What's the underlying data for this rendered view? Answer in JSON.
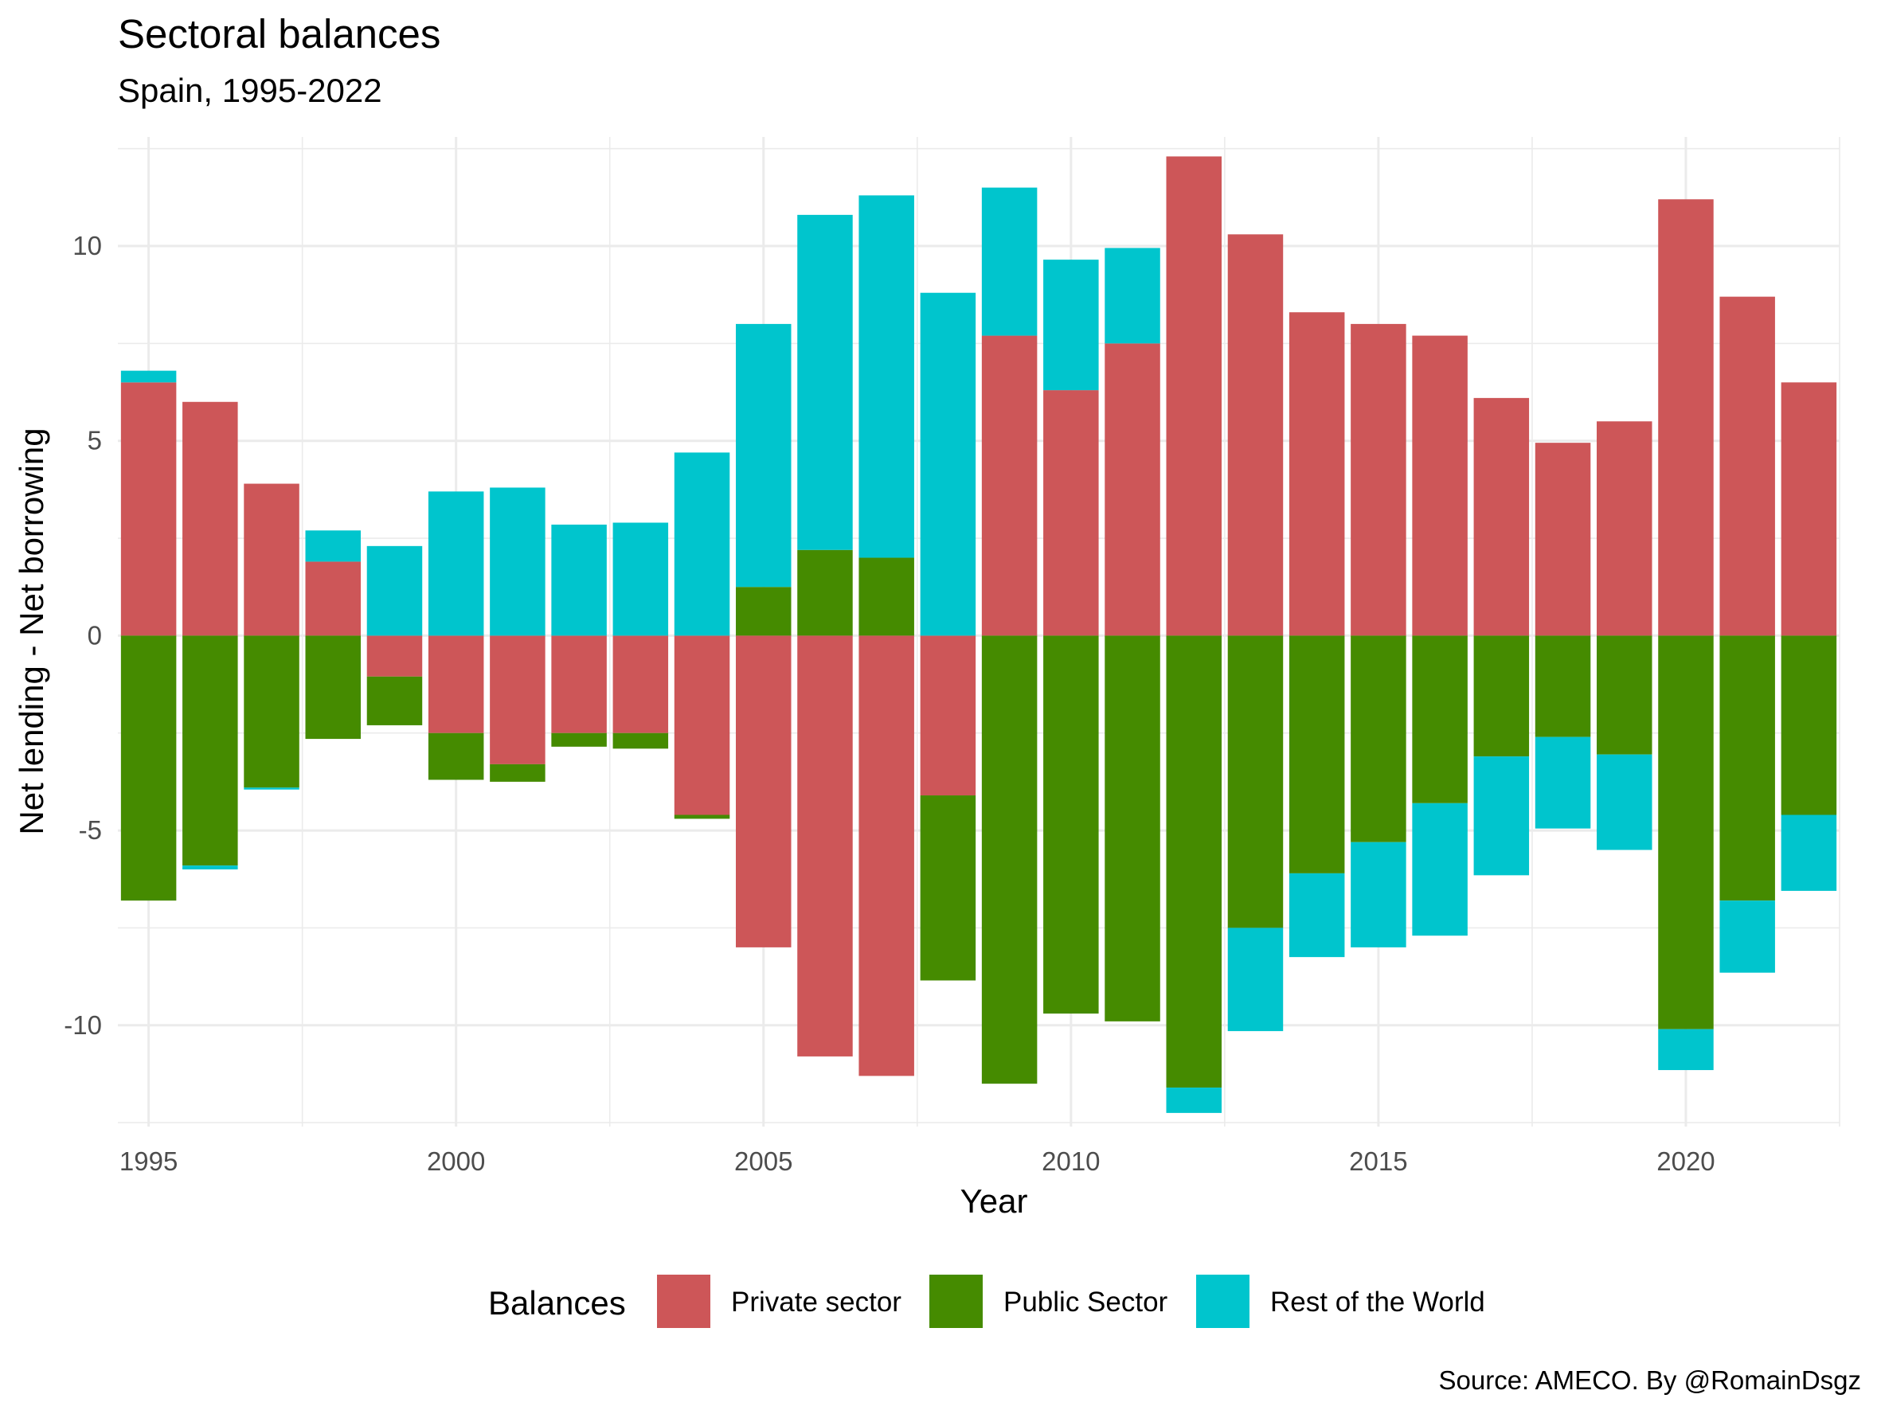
{
  "chart_data": {
    "type": "bar",
    "stacked": true,
    "title": "Sectoral balances",
    "subtitle": "Spain, 1995-2022",
    "xlabel": "Year",
    "ylabel": "Net lending - Net borrowing",
    "caption": "Source: AMECO. By @RomainDsgz",
    "xlim": [
      1994.5,
      2022.5
    ],
    "ylim": [
      -12.6,
      12.8
    ],
    "x_ticks": [
      "1995",
      "2000",
      "2005",
      "2010",
      "2015",
      "2020"
    ],
    "y_ticks": [
      "-10",
      "-5",
      "0",
      "5",
      "10"
    ],
    "grid": true,
    "legend": {
      "title": "Balances",
      "position": "bottom"
    },
    "categories": [
      1995,
      1996,
      1997,
      1998,
      1999,
      2000,
      2001,
      2002,
      2003,
      2004,
      2005,
      2006,
      2007,
      2008,
      2009,
      2010,
      2011,
      2012,
      2013,
      2014,
      2015,
      2016,
      2017,
      2018,
      2019,
      2020,
      2021,
      2022
    ],
    "series": [
      {
        "name": "Private sector",
        "color": "#cd5658",
        "values": [
          6.5,
          6.0,
          3.9,
          1.9,
          -1.05,
          -2.5,
          -3.3,
          -2.5,
          -2.5,
          -4.6,
          -8.0,
          -10.8,
          -11.3,
          -4.1,
          7.7,
          6.3,
          7.5,
          12.3,
          10.3,
          8.3,
          8.0,
          7.7,
          6.1,
          4.95,
          5.5,
          11.2,
          8.7,
          6.5
        ]
      },
      {
        "name": "Public Sector",
        "color": "#458b00",
        "values": [
          -6.8,
          -5.9,
          -3.9,
          -2.65,
          -1.25,
          -1.2,
          -0.45,
          -0.35,
          -0.4,
          -0.1,
          1.25,
          2.2,
          2.0,
          -4.75,
          -11.5,
          -9.7,
          -9.9,
          -11.6,
          -7.5,
          -6.1,
          -5.3,
          -4.3,
          -3.1,
          -2.6,
          -3.05,
          -10.1,
          -6.8,
          -4.6
        ]
      },
      {
        "name": "Rest of the World",
        "color": "#00c5cd",
        "values": [
          0.3,
          -0.1,
          -0.05,
          0.8,
          2.3,
          3.7,
          3.8,
          2.85,
          2.9,
          4.7,
          6.75,
          8.6,
          9.3,
          8.8,
          3.8,
          3.35,
          2.45,
          -0.65,
          -2.65,
          -2.15,
          -2.7,
          -3.4,
          -3.05,
          -2.35,
          -2.45,
          -1.05,
          -1.85,
          -1.95
        ]
      }
    ]
  }
}
